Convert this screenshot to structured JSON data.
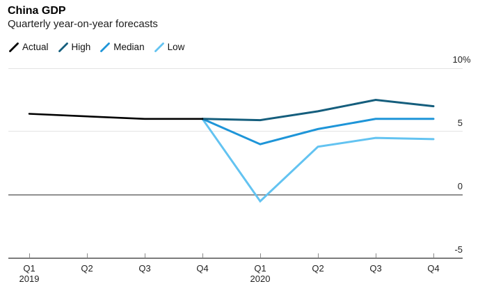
{
  "header": {
    "title": "China GDP",
    "subtitle": "Quarterly year-on-year forecasts"
  },
  "colors": {
    "actual": "#000000",
    "high": "#155e7d",
    "median": "#1e95d8",
    "low": "#63c3f1",
    "grid_light": "#e3e3e3",
    "grid_zero": "#909090",
    "axis": "#7b7b7b",
    "text": "#1f1f1f"
  },
  "legend": [
    {
      "label": "Actual",
      "color": "actual"
    },
    {
      "label": "High",
      "color": "high"
    },
    {
      "label": "Median",
      "color": "median"
    },
    {
      "label": "Low",
      "color": "low"
    }
  ],
  "chart_data": {
    "type": "line",
    "title": "China GDP",
    "subtitle": "Quarterly year-on-year forecasts",
    "unit": "%",
    "ylim": [
      -5,
      10
    ],
    "grid": "horizontal",
    "legend_position": "top-left",
    "x_categories": [
      "Q1 2019",
      "Q2 2019",
      "Q3 2019",
      "Q4 2019",
      "Q1 2020",
      "Q2 2020",
      "Q3 2020",
      "Q4 2020"
    ],
    "x_tick_labels": [
      "Q1",
      "Q2",
      "Q3",
      "Q4",
      "Q1",
      "Q2",
      "Q3",
      "Q4"
    ],
    "year_labels": [
      {
        "text": "2019",
        "index": 0
      },
      {
        "text": "2020",
        "index": 4
      }
    ],
    "y_ticks": [
      {
        "value": 10,
        "label": "10",
        "suffix": "%"
      },
      {
        "value": 5,
        "label": "5"
      },
      {
        "value": 0,
        "label": "0"
      },
      {
        "value": -5,
        "label": "-5"
      }
    ],
    "series": [
      {
        "name": "Actual",
        "color": "actual",
        "start_index": 0,
        "values": [
          6.4,
          6.2,
          6.0,
          6.0
        ]
      },
      {
        "name": "High",
        "color": "high",
        "start_index": 3,
        "values": [
          6.0,
          5.9,
          6.6,
          7.5,
          7.0
        ]
      },
      {
        "name": "Median",
        "color": "median",
        "start_index": 3,
        "values": [
          6.0,
          4.0,
          5.2,
          6.0,
          6.0
        ]
      },
      {
        "name": "Low",
        "color": "low",
        "start_index": 3,
        "values": [
          6.0,
          -0.5,
          3.8,
          4.5,
          4.4
        ]
      }
    ]
  }
}
